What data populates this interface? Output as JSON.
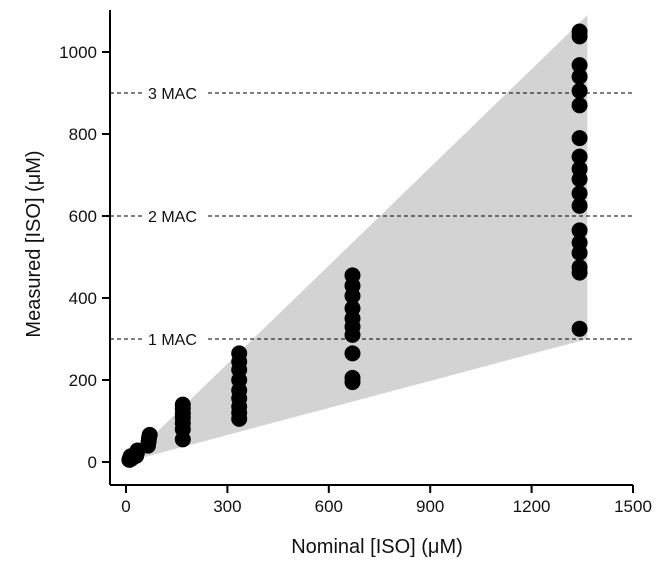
{
  "chart_data": {
    "type": "scatter",
    "title": "",
    "xlabel": "Nominal [ISO] (μM)",
    "ylabel": "Measured [ISO] (μM)",
    "xlim": [
      0,
      1500
    ],
    "ylim": [
      0,
      1100
    ],
    "x_ticks": [
      0,
      300,
      600,
      900,
      1200,
      1500
    ],
    "y_ticks": [
      0,
      200,
      400,
      600,
      800,
      1000
    ],
    "grid": false,
    "shaded_region": [
      [
        0,
        0
      ],
      [
        1365,
        1090
      ],
      [
        1365,
        300
      ]
    ],
    "reference_lines": [
      {
        "label": "1 MAC",
        "y": 300
      },
      {
        "label": "2 MAC",
        "y": 600
      },
      {
        "label": "3 MAC",
        "y": 900
      }
    ],
    "series": [
      {
        "points": [
          [
            10,
            5
          ],
          [
            12,
            10
          ],
          [
            14,
            14
          ],
          [
            16,
            8
          ],
          [
            18,
            12
          ],
          [
            30,
            15
          ],
          [
            32,
            22
          ],
          [
            34,
            28
          ],
          [
            65,
            40
          ],
          [
            67,
            50
          ],
          [
            68,
            58
          ],
          [
            70,
            66
          ],
          [
            168,
            55
          ],
          [
            168,
            80
          ],
          [
            168,
            95
          ],
          [
            168,
            108
          ],
          [
            168,
            118
          ],
          [
            168,
            130
          ],
          [
            168,
            140
          ],
          [
            335,
            105
          ],
          [
            335,
            120
          ],
          [
            335,
            135
          ],
          [
            335,
            155
          ],
          [
            335,
            175
          ],
          [
            335,
            200
          ],
          [
            335,
            225
          ],
          [
            335,
            245
          ],
          [
            335,
            265
          ],
          [
            670,
            195
          ],
          [
            670,
            205
          ],
          [
            670,
            265
          ],
          [
            670,
            310
          ],
          [
            670,
            330
          ],
          [
            670,
            350
          ],
          [
            670,
            375
          ],
          [
            670,
            405
          ],
          [
            670,
            430
          ],
          [
            670,
            455
          ],
          [
            1342,
            325
          ],
          [
            1342,
            462
          ],
          [
            1342,
            475
          ],
          [
            1342,
            510
          ],
          [
            1342,
            535
          ],
          [
            1342,
            565
          ],
          [
            1342,
            625
          ],
          [
            1342,
            655
          ],
          [
            1342,
            690
          ],
          [
            1342,
            715
          ],
          [
            1342,
            745
          ],
          [
            1342,
            790
          ],
          [
            1342,
            870
          ],
          [
            1342,
            905
          ],
          [
            1342,
            940
          ],
          [
            1342,
            968
          ],
          [
            1342,
            1038
          ],
          [
            1342,
            1050
          ]
        ]
      }
    ]
  },
  "colors": {
    "shade": "#d3d3d3",
    "marker": "#000000",
    "axis": "#000000",
    "reference_line": "#000000"
  }
}
